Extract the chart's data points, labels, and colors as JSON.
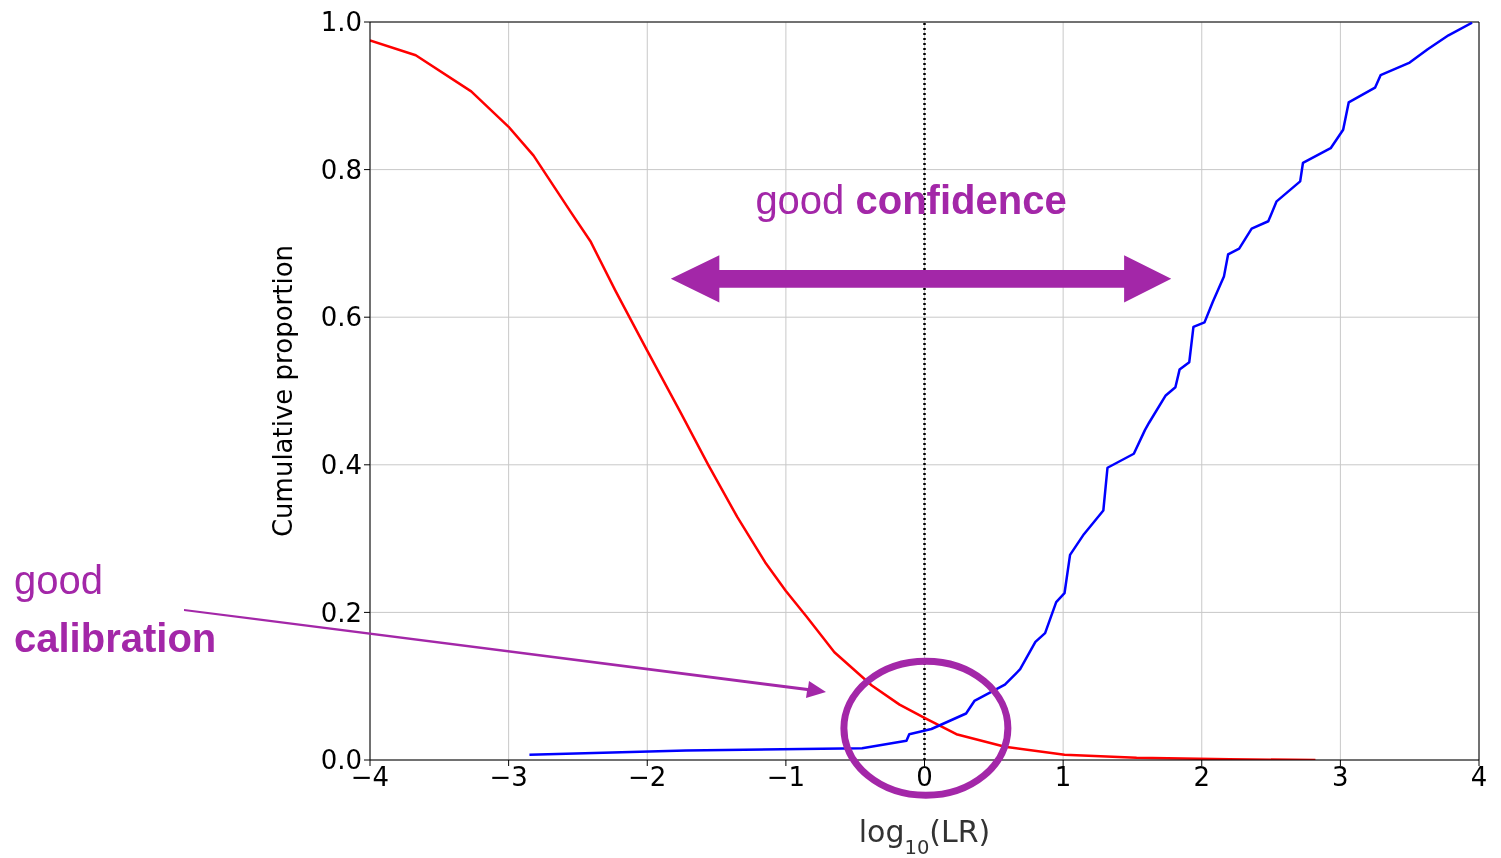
{
  "chart_data": {
    "type": "line",
    "xlabel": "log$_{10}$(LR)",
    "ylabel": "Cumulative proportion",
    "xlim": [
      -4,
      4
    ],
    "ylim": [
      0,
      1
    ],
    "xticks": [
      {
        "value": -4,
        "label": "−4"
      },
      {
        "value": -3,
        "label": "−3"
      },
      {
        "value": -2,
        "label": "−2"
      },
      {
        "value": -1,
        "label": "−1"
      },
      0,
      1,
      2,
      3,
      4
    ],
    "yticks": [
      {
        "value": 0,
        "label": "0.0"
      },
      0.2,
      0.4,
      0.6,
      0.8,
      {
        "value": 1,
        "label": "1.0"
      }
    ],
    "grid": true,
    "legend": false,
    "marker": "none",
    "line_style": "solid",
    "series": [
      {
        "color": "#ff0000",
        "x": [
          -4,
          -3.67,
          -3.27,
          -3,
          -2.82,
          -2.55,
          -2.41,
          -2.23,
          -2.01,
          -1.76,
          -1.56,
          -1.35,
          -1.15,
          -1,
          -0.85,
          -0.65,
          -0.38,
          -0.18,
          0,
          0.23,
          0.58,
          1.01,
          1.53,
          2.2,
          2.82
        ],
        "values": [
          0.975,
          0.955,
          0.906,
          0.858,
          0.819,
          0.742,
          0.703,
          0.636,
          0.558,
          0.471,
          0.4,
          0.329,
          0.268,
          0.229,
          0.194,
          0.146,
          0.101,
          0.075,
          0.057,
          0.035,
          0.018,
          0.007,
          0.003,
          0.001,
          0
        ]
      },
      {
        "color": "#0000ff",
        "x": [
          -2.85,
          -1.72,
          -0.45,
          -0.13,
          -0.11,
          0.05,
          0.3,
          0.36,
          0.58,
          0.69,
          0.8,
          0.87,
          0.95,
          1.01,
          1.05,
          1.15,
          1.29,
          1.32,
          1.51,
          1.59,
          1.62,
          1.74,
          1.81,
          1.84,
          1.91,
          1.94,
          2.02,
          2.08,
          2.16,
          2.19,
          2.27,
          2.36,
          2.48,
          2.54,
          2.71,
          2.73,
          2.93,
          3.02,
          3.06,
          3.25,
          3.29,
          3.5,
          3.63,
          3.78,
          3.95
        ],
        "values": [
          0.007,
          0.013,
          0.016,
          0.026,
          0.035,
          0.042,
          0.063,
          0.08,
          0.102,
          0.123,
          0.16,
          0.172,
          0.214,
          0.226,
          0.278,
          0.306,
          0.338,
          0.396,
          0.415,
          0.447,
          0.457,
          0.494,
          0.505,
          0.529,
          0.539,
          0.587,
          0.593,
          0.621,
          0.655,
          0.685,
          0.693,
          0.72,
          0.73,
          0.757,
          0.784,
          0.809,
          0.829,
          0.854,
          0.891,
          0.911,
          0.928,
          0.945,
          0.963,
          0.982,
          0.999
        ]
      }
    ],
    "ref_lines": [
      {
        "axis": "x",
        "value": 0,
        "color": "#000000",
        "line_style": "dotted"
      }
    ],
    "annotations": [
      "good confidence",
      "good calibration"
    ]
  }
}
